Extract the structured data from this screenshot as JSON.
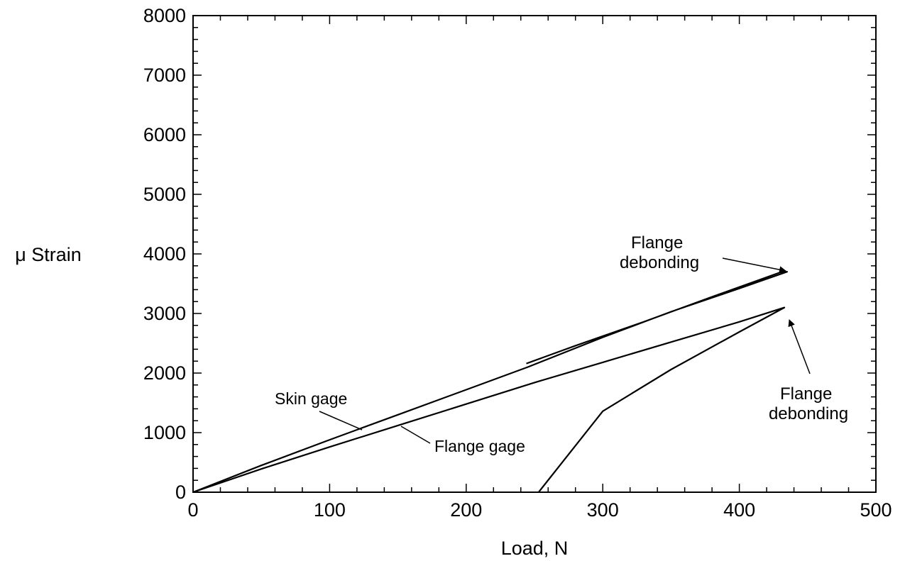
{
  "chart_data": {
    "type": "line",
    "title": "",
    "xlabel": "Load, N",
    "ylabel": "μ Strain",
    "xlim": [
      0,
      500
    ],
    "ylim": [
      0,
      8000
    ],
    "x_ticks": [
      "0",
      "100",
      "200",
      "300",
      "400",
      "500"
    ],
    "y_ticks": [
      "0",
      "1000",
      "2000",
      "3000",
      "4000",
      "5000",
      "6000",
      "7000",
      "8000"
    ],
    "grid": false,
    "legend": "none",
    "series": [
      {
        "name": "Skin gage",
        "x": [
          0,
          50,
          100,
          150,
          200,
          245,
          300,
          350,
          400,
          435,
          430,
          380,
          330,
          280,
          244
        ],
        "y": [
          0,
          450,
          880,
          1300,
          1720,
          2100,
          2600,
          3030,
          3420,
          3700,
          3690,
          3280,
          2860,
          2460,
          2160
        ]
      },
      {
        "name": "Flange gage",
        "x": [
          0,
          50,
          100,
          150,
          200,
          250,
          300,
          350,
          400,
          433,
          400,
          350,
          300,
          253
        ],
        "y": [
          0,
          390,
          760,
          1120,
          1480,
          1840,
          2180,
          2520,
          2860,
          3100,
          2690,
          2060,
          1360,
          0
        ]
      }
    ],
    "annotations": [
      {
        "text_lines": [
          "Flange",
          "debonding"
        ],
        "target": [
          435,
          3700
        ]
      },
      {
        "text_lines": [
          "Flange",
          "debonding"
        ],
        "target": [
          433,
          3100
        ]
      },
      {
        "text": "Skin gage",
        "target": [
          125,
          1080
        ]
      },
      {
        "text": "Flange gage",
        "target": [
          150,
          1120
        ]
      }
    ]
  }
}
